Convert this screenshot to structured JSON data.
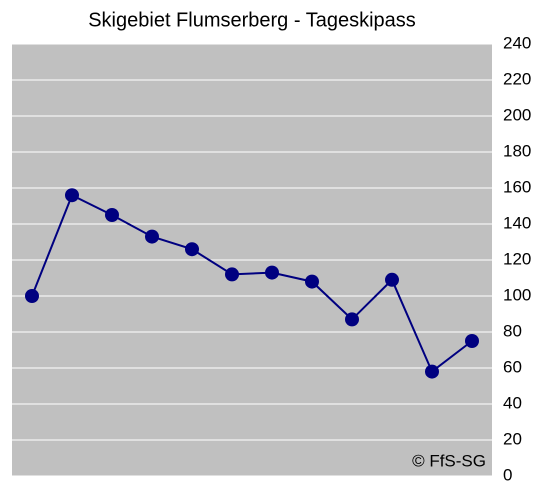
{
  "chart_data": {
    "type": "line",
    "title": "Skigebiet Flumserberg - Tageskipass",
    "annotation": "© FfS-SG",
    "categories": [
      null,
      null,
      null,
      null,
      null,
      null,
      null,
      null,
      null,
      null,
      null,
      null
    ],
    "series": [
      {
        "name": null,
        "color": "#000080",
        "values": [
          100,
          156,
          145,
          133,
          126,
          112,
          113,
          108,
          87,
          109,
          58,
          75
        ]
      }
    ],
    "ylim": [
      0,
      240
    ],
    "yticks": [
      0,
      20,
      40,
      60,
      80,
      100,
      120,
      140,
      160,
      180,
      200,
      220,
      240
    ],
    "grid": true,
    "y_axis_side": "right",
    "plot_background": "#c0c0c0"
  }
}
